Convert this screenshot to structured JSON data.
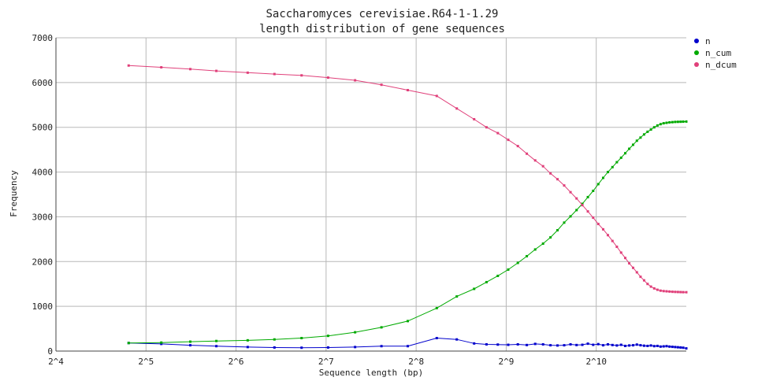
{
  "chart_data": {
    "type": "line",
    "title": "Saccharomyces cerevisiae.R64-1-1.29",
    "subtitle": "length distribution of gene sequences",
    "xlabel": "Sequence length (bp)",
    "ylabel": "Frequency",
    "x_scale": "log2",
    "x_tick_labels": [
      "2^4",
      "2^5",
      "2^6",
      "2^7",
      "2^8",
      "2^9",
      "2^10"
    ],
    "x_tick_values": [
      16,
      32,
      64,
      128,
      256,
      512,
      1024
    ],
    "xlim": [
      16,
      2048
    ],
    "ylim": [
      0,
      7000
    ],
    "y_ticks": [
      0,
      1000,
      2000,
      3000,
      4000,
      5000,
      6000,
      7000
    ],
    "grid": true,
    "legend_position": "top-right",
    "x": [
      28,
      36,
      45,
      55,
      70,
      86,
      106,
      130,
      160,
      196,
      240,
      300,
      350,
      400,
      440,
      480,
      520,
      560,
      600,
      640,
      680,
      720,
      760,
      800,
      840,
      880,
      920,
      960,
      1000,
      1040,
      1080,
      1120,
      1160,
      1200,
      1240,
      1280,
      1320,
      1360,
      1400,
      1440,
      1480,
      1520,
      1560,
      1600,
      1640,
      1680,
      1720,
      1760,
      1800,
      1840,
      1880,
      1920,
      1960,
      2000,
      2048
    ],
    "series": [
      {
        "name": "n",
        "color": "#0000cc",
        "values": [
          180,
          160,
          130,
          110,
          90,
          80,
          75,
          80,
          90,
          110,
          110,
          290,
          260,
          170,
          150,
          145,
          140,
          150,
          135,
          160,
          150,
          130,
          125,
          130,
          150,
          135,
          140,
          165,
          140,
          155,
          130,
          150,
          135,
          125,
          140,
          115,
          125,
          130,
          145,
          130,
          120,
          115,
          125,
          110,
          115,
          100,
          105,
          110,
          100,
          95,
          90,
          85,
          80,
          75,
          60
        ]
      },
      {
        "name": "n_cum",
        "color": "#00aa00",
        "values": [
          180,
          190,
          210,
          225,
          240,
          260,
          290,
          340,
          420,
          530,
          670,
          960,
          1220,
          1390,
          1540,
          1680,
          1820,
          1970,
          2120,
          2270,
          2400,
          2540,
          2700,
          2870,
          3010,
          3150,
          3290,
          3440,
          3580,
          3730,
          3870,
          4000,
          4110,
          4220,
          4320,
          4420,
          4520,
          4610,
          4700,
          4770,
          4840,
          4900,
          4950,
          5000,
          5040,
          5070,
          5090,
          5100,
          5110,
          5115,
          5120,
          5122,
          5124,
          5126,
          5128
        ]
      },
      {
        "name": "n_dcum",
        "color": "#e0407a",
        "values": [
          6380,
          6340,
          6300,
          6260,
          6220,
          6190,
          6160,
          6110,
          6050,
          5950,
          5830,
          5700,
          5420,
          5180,
          5000,
          4870,
          4720,
          4580,
          4410,
          4260,
          4130,
          3970,
          3840,
          3700,
          3550,
          3410,
          3260,
          3120,
          2980,
          2840,
          2720,
          2590,
          2460,
          2330,
          2200,
          2080,
          1960,
          1860,
          1760,
          1660,
          1580,
          1500,
          1440,
          1400,
          1370,
          1350,
          1340,
          1335,
          1330,
          1325,
          1322,
          1320,
          1318,
          1316,
          1315
        ]
      }
    ]
  }
}
